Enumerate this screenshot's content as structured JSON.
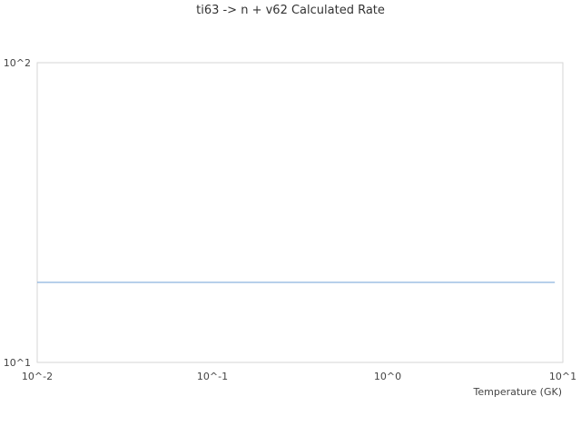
{
  "chart_data": {
    "type": "line",
    "title": "ti63 -> n + v62 Calculated Rate",
    "xlabel": "Temperature (GK)",
    "ylabel": "",
    "xscale": "log",
    "yscale": "log",
    "xlim": [
      0.01,
      10
    ],
    "ylim": [
      10,
      100
    ],
    "xticks": [
      "10^-2",
      "10^-1",
      "10^0",
      "10^1"
    ],
    "yticks": [
      "10^1",
      "10^2"
    ],
    "grid": false,
    "series": [
      {
        "x": [
          0.01,
          9
        ],
        "y": [
          18.5,
          18.5
        ],
        "color": "#6fa0d8"
      }
    ]
  }
}
